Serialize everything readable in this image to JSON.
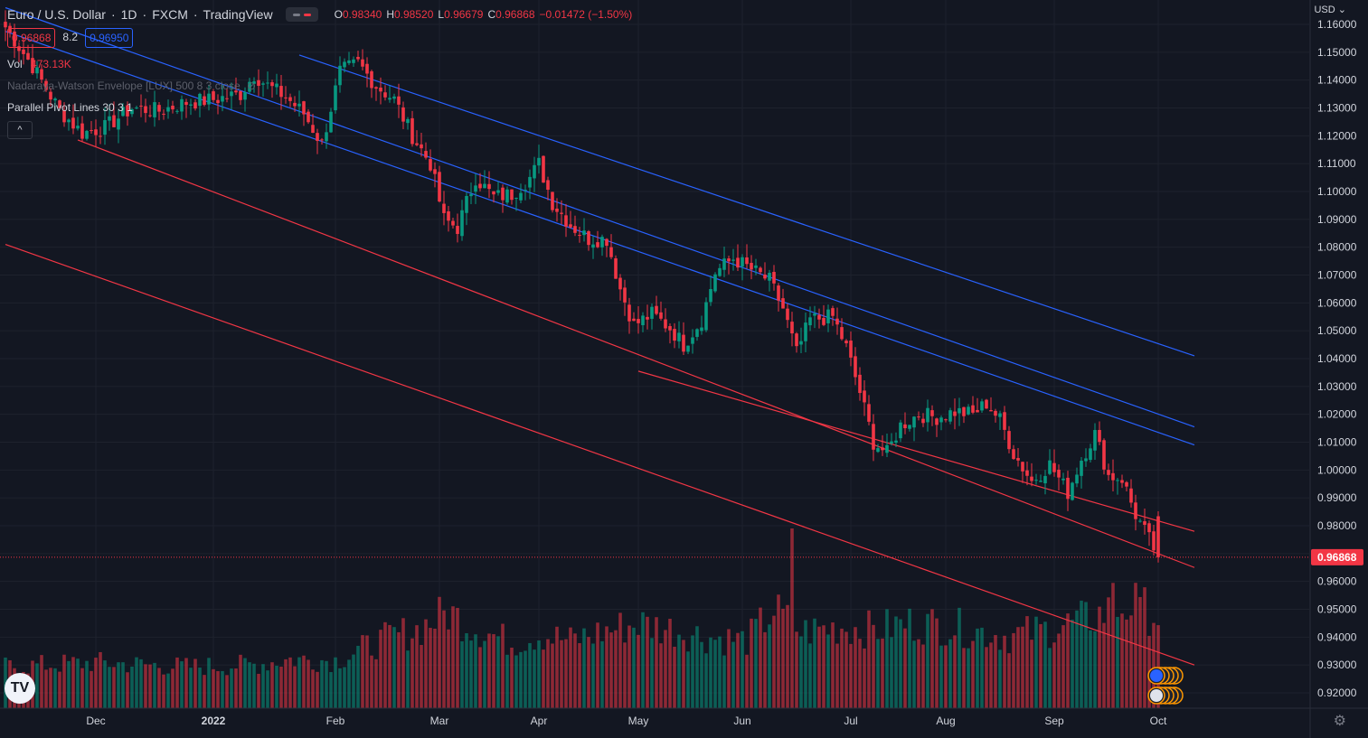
{
  "header": {
    "symbol_name": "Euro / U.S. Dollar",
    "interval": "1D",
    "exchange": "FXCM",
    "source": "TradingView",
    "ohlc": {
      "o_label": "O",
      "o": "0.98340",
      "h_label": "H",
      "h": "0.98520",
      "l_label": "L",
      "l": "0.96679",
      "c_label": "C",
      "c": "0.96868",
      "change": "−0.01472 (−1.50%)"
    },
    "sell_price": "0.96868",
    "spread": "8.2",
    "buy_price": "0.96950"
  },
  "indicators": {
    "vol_label": "Vol",
    "vol_value": "473.13K",
    "nadaraya": "Nadaraya-Watson Envelope [LUX] 500 8 3 close",
    "pivot": "Parallel Pivot Lines 30 3 1",
    "collapse_icon": "^"
  },
  "currency": "USD",
  "currency_icon": "chevron-down-icon",
  "logo_text": "TV",
  "settings_icon": "⚙",
  "colors": {
    "background": "#131722",
    "grid": "#1e222d",
    "up": "#089981",
    "down": "#f23645",
    "blue_line": "#2962ff",
    "red_line": "#f23645",
    "axis_text": "#d1d4dc"
  },
  "chart_data": {
    "type": "candlestick",
    "title": "Euro / U.S. Dollar, 1D, FXCM",
    "xlabel": "",
    "ylabel": "USD",
    "ylim": [
      0.912,
      1.166
    ],
    "y_ticks": [
      "1.16000",
      "1.15000",
      "1.14000",
      "1.13000",
      "1.12000",
      "1.11000",
      "1.10000",
      "1.09000",
      "1.08000",
      "1.07000",
      "1.06000",
      "1.05000",
      "1.04000",
      "1.03000",
      "1.02000",
      "1.01000",
      "1.00000",
      "0.99000",
      "0.98000",
      "0.97000",
      "0.96000",
      "0.95000",
      "0.94000",
      "0.93000",
      "0.92000"
    ],
    "x_ticks": [
      "Dec",
      "2022",
      "Feb",
      "Mar",
      "Apr",
      "May",
      "Jun",
      "Jul",
      "Aug",
      "Sep",
      "Oct"
    ],
    "x_tick_day_index": [
      20,
      46,
      73,
      96,
      118,
      140,
      163,
      187,
      208,
      232,
      255
    ],
    "total_days": 280,
    "last_price": 0.96868,
    "last_price_label": "0.96868",
    "close_keypoints": [
      [
        0,
        1.159
      ],
      [
        6,
        1.145
      ],
      [
        12,
        1.129
      ],
      [
        17,
        1.121
      ],
      [
        22,
        1.123
      ],
      [
        28,
        1.13
      ],
      [
        34,
        1.129
      ],
      [
        40,
        1.132
      ],
      [
        46,
        1.133
      ],
      [
        52,
        1.135
      ],
      [
        55,
        1.142
      ],
      [
        58,
        1.138
      ],
      [
        62,
        1.134
      ],
      [
        66,
        1.128
      ],
      [
        70,
        1.117
      ],
      [
        74,
        1.143
      ],
      [
        78,
        1.146
      ],
      [
        82,
        1.138
      ],
      [
        86,
        1.133
      ],
      [
        90,
        1.12
      ],
      [
        94,
        1.11
      ],
      [
        97,
        1.09
      ],
      [
        100,
        1.087
      ],
      [
        104,
        1.105
      ],
      [
        108,
        1.098
      ],
      [
        112,
        1.099
      ],
      [
        116,
        1.105
      ],
      [
        118,
        1.11
      ],
      [
        121,
        1.096
      ],
      [
        125,
        1.088
      ],
      [
        129,
        1.083
      ],
      [
        133,
        1.083
      ],
      [
        136,
        1.065
      ],
      [
        139,
        1.052
      ],
      [
        143,
        1.056
      ],
      [
        147,
        1.051
      ],
      [
        150,
        1.045
      ],
      [
        154,
        1.054
      ],
      [
        157,
        1.071
      ],
      [
        161,
        1.076
      ],
      [
        165,
        1.072
      ],
      [
        169,
        1.068
      ],
      [
        172,
        1.058
      ],
      [
        175,
        1.042
      ],
      [
        178,
        1.054
      ],
      [
        183,
        1.055
      ],
      [
        186,
        1.044
      ],
      [
        189,
        1.028
      ],
      [
        192,
        1.01
      ],
      [
        195,
        1.006
      ],
      [
        198,
        1.016
      ],
      [
        202,
        1.02
      ],
      [
        206,
        1.019
      ],
      [
        210,
        1.021
      ],
      [
        214,
        1.02
      ],
      [
        217,
        1.024
      ],
      [
        220,
        1.018
      ],
      [
        223,
        1.006
      ],
      [
        227,
        0.996
      ],
      [
        231,
        1.002
      ],
      [
        235,
        0.992
      ],
      [
        238,
        1.004
      ],
      [
        241,
        1.013
      ],
      [
        244,
        0.998
      ],
      [
        247,
        0.997
      ],
      [
        250,
        0.984
      ],
      [
        253,
        0.975
      ],
      [
        255,
        0.96868
      ]
    ],
    "volume_keypoints": [
      [
        0,
        38
      ],
      [
        20,
        42
      ],
      [
        40,
        38
      ],
      [
        55,
        40
      ],
      [
        63,
        45
      ],
      [
        73,
        44
      ],
      [
        85,
        65
      ],
      [
        91,
        72
      ],
      [
        98,
        88
      ],
      [
        105,
        72
      ],
      [
        112,
        60
      ],
      [
        118,
        68
      ],
      [
        125,
        62
      ],
      [
        132,
        70
      ],
      [
        140,
        78
      ],
      [
        148,
        72
      ],
      [
        156,
        65
      ],
      [
        164,
        62
      ],
      [
        170,
        90
      ],
      [
        176,
        70
      ],
      [
        185,
        75
      ],
      [
        192,
        72
      ],
      [
        200,
        78
      ],
      [
        208,
        76
      ],
      [
        216,
        70
      ],
      [
        222,
        66
      ],
      [
        230,
        72
      ],
      [
        238,
        80
      ],
      [
        245,
        90
      ],
      [
        250,
        95
      ],
      [
        255,
        84
      ]
    ],
    "volume_spikes": [
      [
        174,
        165
      ],
      [
        245,
        115
      ],
      [
        251,
        102
      ]
    ],
    "volume_max": 165,
    "channel_lines": [
      {
        "name": "blue-upper",
        "color": "blue",
        "points": [
          [
            65,
            1.149
          ],
          [
            263,
            1.041
          ]
        ]
      },
      {
        "name": "blue-middle",
        "color": "blue",
        "points": [
          [
            0,
            1.166
          ],
          [
            263,
            1.0155
          ]
        ]
      },
      {
        "name": "blue-lower",
        "color": "blue",
        "points": [
          [
            0,
            1.1575
          ],
          [
            263,
            1.009
          ]
        ]
      },
      {
        "name": "red-upper",
        "color": "red",
        "points": [
          [
            140,
            1.0355
          ],
          [
            263,
            0.978
          ]
        ]
      },
      {
        "name": "red-middle",
        "color": "red",
        "points": [
          [
            16,
            1.1185
          ],
          [
            263,
            0.965
          ]
        ]
      },
      {
        "name": "red-lower",
        "color": "red",
        "points": [
          [
            0,
            1.081
          ],
          [
            263,
            0.93
          ]
        ]
      }
    ],
    "legend": "none"
  }
}
